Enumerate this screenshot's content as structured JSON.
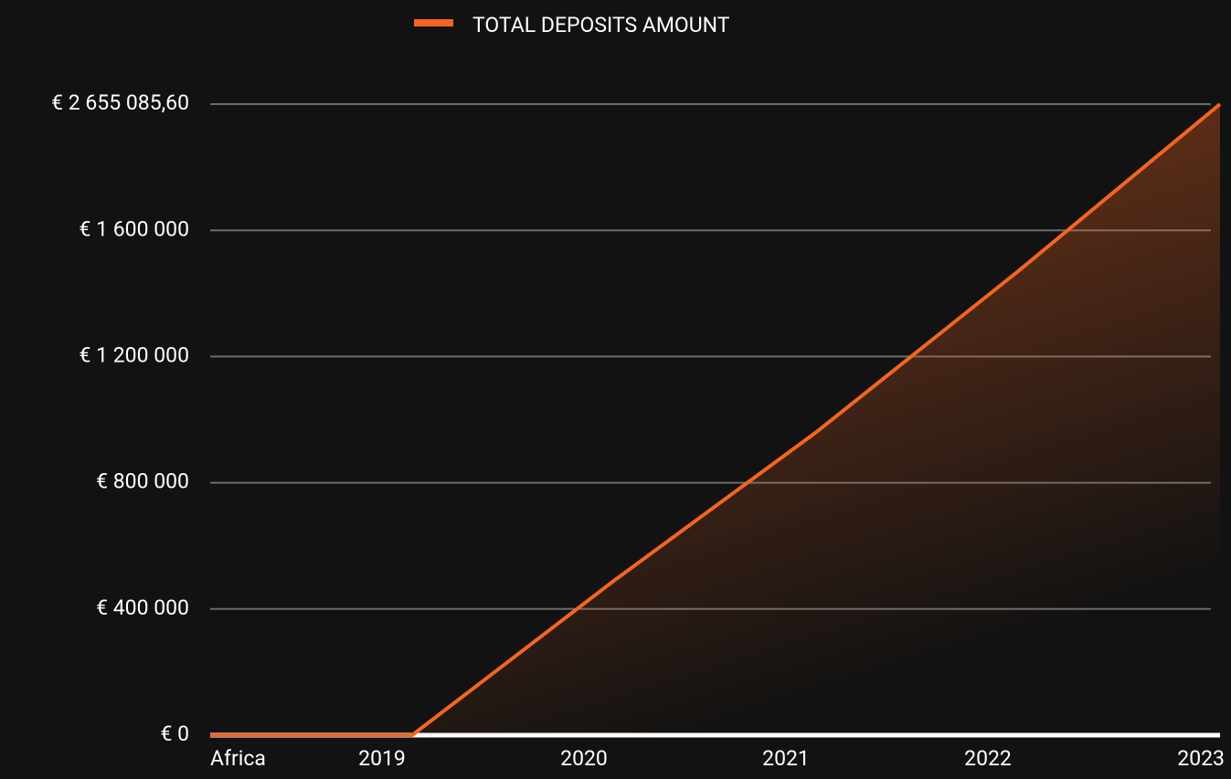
{
  "chart_data": {
    "type": "line",
    "categories": [
      "Africa",
      "2019",
      "2020",
      "2021",
      "2022",
      "2023"
    ],
    "series": [
      {
        "name": "TOTAL DEPOSITS AMOUNT",
        "color": "#f26522",
        "values": [
          0,
          0,
          490000,
          960000,
          1470000,
          2655085.6
        ]
      }
    ],
    "ylim": [
      0,
      2655085.6
    ],
    "yticks": [
      {
        "value": 0,
        "label": "€ 0"
      },
      {
        "value": 400000,
        "label": "€ 400 000"
      },
      {
        "value": 800000,
        "label": "€ 800 000"
      },
      {
        "value": 1200000,
        "label": "€ 1 200 000"
      },
      {
        "value": 1600000,
        "label": "€ 1 600 000"
      },
      {
        "value": 2655085.6,
        "label": "€ 2 655 085,60"
      }
    ],
    "grid": true,
    "legend": "top"
  }
}
